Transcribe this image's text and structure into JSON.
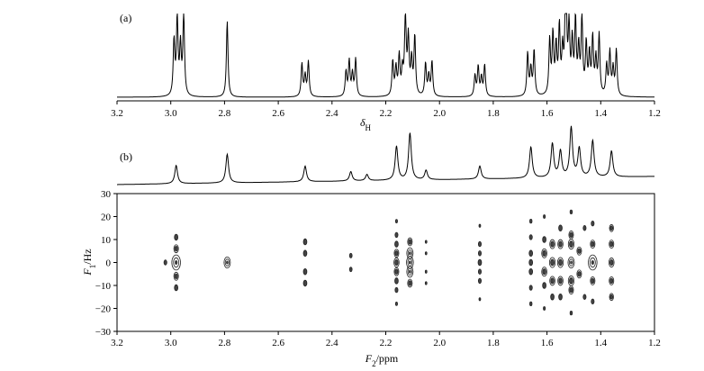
{
  "figure": {
    "panel_a_label": "(a)",
    "panel_b_label": "(b)",
    "xlabel_a_main": "δ",
    "xlabel_a_sub": "H",
    "xlabel_b_main": "F",
    "xlabel_b_sub": "2",
    "xlabel_b_unit": "/ppm",
    "ylabel_b_main": "F",
    "ylabel_b_sub": "1",
    "ylabel_b_unit": "/Hz"
  },
  "chart_data": [
    {
      "type": "line",
      "panel": "a",
      "title": "",
      "xlabel": "δH",
      "xlim": [
        3.2,
        1.2
      ],
      "x_reversed": true,
      "xticks": [
        "3.2",
        "3.0",
        "2.8",
        "2.6",
        "2.4",
        "2.2",
        "2.0",
        "1.8",
        "1.6",
        "1.4",
        "1.2"
      ],
      "peaks": [
        {
          "ppm": 2.97,
          "rel_height": 1.0,
          "mult": 4
        },
        {
          "ppm": 2.79,
          "rel_height": 0.92,
          "mult": 1
        },
        {
          "ppm": 2.5,
          "rel_height": 0.42,
          "mult": 3
        },
        {
          "ppm": 2.33,
          "rel_height": 0.45,
          "mult": 4
        },
        {
          "ppm": 2.15,
          "rel_height": 0.5,
          "mult": 5
        },
        {
          "ppm": 2.11,
          "rel_height": 0.72,
          "mult": 4
        },
        {
          "ppm": 2.04,
          "rel_height": 0.42,
          "mult": 3
        },
        {
          "ppm": 1.85,
          "rel_height": 0.38,
          "mult": 4
        },
        {
          "ppm": 1.66,
          "rel_height": 0.55,
          "mult": 3
        },
        {
          "ppm": 1.56,
          "rel_height": 0.85,
          "mult": 6
        },
        {
          "ppm": 1.5,
          "rel_height": 0.93,
          "mult": 6
        },
        {
          "ppm": 1.43,
          "rel_height": 0.72,
          "mult": 5
        },
        {
          "ppm": 1.36,
          "rel_height": 0.55,
          "mult": 4
        }
      ]
    },
    {
      "type": "line",
      "panel": "b-projection",
      "xlim": [
        3.2,
        1.2
      ],
      "x_reversed": true,
      "peaks": [
        {
          "ppm": 2.98,
          "rel_height": 0.35
        },
        {
          "ppm": 2.79,
          "rel_height": 0.55
        },
        {
          "ppm": 2.5,
          "rel_height": 0.3
        },
        {
          "ppm": 2.33,
          "rel_height": 0.18
        },
        {
          "ppm": 2.27,
          "rel_height": 0.12
        },
        {
          "ppm": 2.16,
          "rel_height": 0.65
        },
        {
          "ppm": 2.11,
          "rel_height": 0.9
        },
        {
          "ppm": 2.05,
          "rel_height": 0.18
        },
        {
          "ppm": 1.85,
          "rel_height": 0.25
        },
        {
          "ppm": 1.66,
          "rel_height": 0.6
        },
        {
          "ppm": 1.58,
          "rel_height": 0.65
        },
        {
          "ppm": 1.55,
          "rel_height": 0.5
        },
        {
          "ppm": 1.51,
          "rel_height": 0.95
        },
        {
          "ppm": 1.48,
          "rel_height": 0.55
        },
        {
          "ppm": 1.43,
          "rel_height": 0.7
        },
        {
          "ppm": 1.36,
          "rel_height": 0.5
        }
      ]
    },
    {
      "type": "scatter",
      "panel": "b-2d",
      "xlabel": "F2/ppm",
      "ylabel": "F1/Hz",
      "xlim": [
        3.2,
        1.2
      ],
      "ylim": [
        -30,
        30
      ],
      "x_reversed": true,
      "xticks": [
        "3.2",
        "3.0",
        "2.8",
        "2.6",
        "2.4",
        "2.2",
        "2.0",
        "1.8",
        "1.6",
        "1.4",
        "1.2"
      ],
      "yticks": [
        "30",
        "20",
        "10",
        "0",
        "−10",
        "−20",
        "−30"
      ],
      "ytick_values": [
        30,
        20,
        10,
        0,
        -10,
        -20,
        -30
      ],
      "contours": [
        {
          "x": 2.98,
          "y": [
            11,
            6,
            0,
            -6,
            -11
          ],
          "size": [
            1.2,
            1.6,
            3.0,
            1.6,
            1.2
          ]
        },
        {
          "x": 3.02,
          "y": [
            0
          ],
          "size": [
            1.0
          ]
        },
        {
          "x": 2.79,
          "y": [
            0
          ],
          "size": [
            2.2
          ]
        },
        {
          "x": 2.5,
          "y": [
            9,
            4,
            -4,
            -9
          ],
          "size": [
            1.2,
            1.2,
            1.2,
            1.2
          ]
        },
        {
          "x": 2.33,
          "y": [
            3,
            -3
          ],
          "size": [
            0.9,
            0.9
          ]
        },
        {
          "x": 2.16,
          "y": [
            18,
            12,
            8,
            4,
            0,
            -4,
            -8,
            -12,
            -18
          ],
          "size": [
            0.7,
            1.0,
            1.2,
            1.6,
            1.8,
            1.6,
            1.2,
            1.0,
            0.7
          ]
        },
        {
          "x": 2.11,
          "y": [
            9,
            4,
            0,
            -4,
            -9
          ],
          "size": [
            1.6,
            2.2,
            2.4,
            2.2,
            1.6
          ]
        },
        {
          "x": 2.05,
          "y": [
            9,
            4,
            -4,
            -9
          ],
          "size": [
            0.6,
            0.6,
            0.6,
            0.6
          ]
        },
        {
          "x": 1.85,
          "y": [
            16,
            8,
            4,
            0,
            -4,
            -8,
            -16
          ],
          "size": [
            0.6,
            1.0,
            1.0,
            1.2,
            1.0,
            1.0,
            0.6
          ]
        },
        {
          "x": 1.66,
          "y": [
            18,
            11,
            4,
            0,
            -4,
            -11,
            -18
          ],
          "size": [
            0.8,
            1.0,
            1.2,
            1.2,
            1.2,
            1.0,
            0.8
          ]
        },
        {
          "x": 1.61,
          "y": [
            20,
            10,
            4,
            -4,
            -10,
            -20
          ],
          "size": [
            0.7,
            1.2,
            1.8,
            1.8,
            1.2,
            0.7
          ]
        },
        {
          "x": 1.58,
          "y": [
            8,
            0,
            -8,
            -15
          ],
          "size": [
            1.8,
            2.0,
            1.8,
            1.2
          ]
        },
        {
          "x": 1.55,
          "y": [
            15,
            8,
            0,
            -8,
            -15
          ],
          "size": [
            1.2,
            1.8,
            2.0,
            1.8,
            1.2
          ]
        },
        {
          "x": 1.51,
          "y": [
            22,
            12,
            8,
            0,
            -8,
            -12,
            -22
          ],
          "size": [
            0.8,
            1.6,
            2.0,
            2.2,
            2.0,
            1.6,
            0.8
          ]
        },
        {
          "x": 1.48,
          "y": [
            5,
            -5
          ],
          "size": [
            1.6,
            1.6
          ]
        },
        {
          "x": 1.46,
          "y": [
            15,
            -15
          ],
          "size": [
            1.0,
            1.0
          ]
        },
        {
          "x": 1.43,
          "y": [
            17,
            8,
            0,
            -8,
            -17
          ],
          "size": [
            1.0,
            1.6,
            3.0,
            1.6,
            1.0
          ]
        },
        {
          "x": 1.36,
          "y": [
            15,
            8,
            0,
            -8,
            -15
          ],
          "size": [
            1.4,
            1.6,
            1.8,
            1.6,
            1.4
          ]
        }
      ]
    }
  ]
}
